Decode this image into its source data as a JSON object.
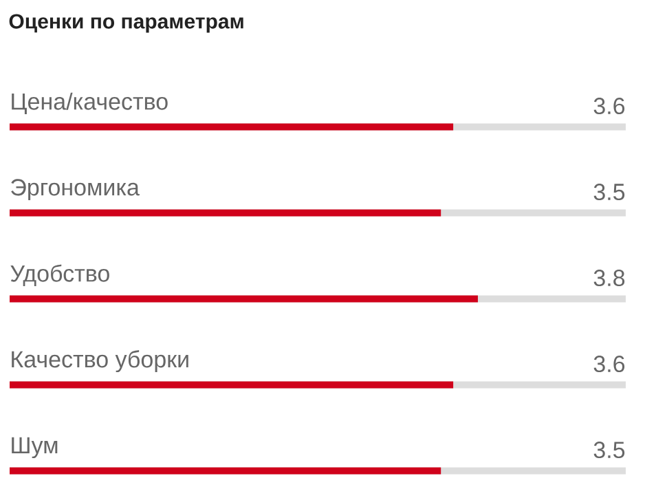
{
  "chart_data": {
    "type": "bar",
    "orientation": "horizontal",
    "title": "Оценки по параметрам",
    "categories": [
      "Цена/качество",
      "Эргономика",
      "Удобство",
      "Качество уборки",
      "Шум"
    ],
    "values": [
      3.6,
      3.5,
      3.8,
      3.6,
      3.5
    ],
    "value_labels": [
      "3.6",
      "3.5",
      "3.8",
      "3.6",
      "3.5"
    ],
    "color": "#d0021b",
    "xlim": [
      0,
      5
    ]
  }
}
